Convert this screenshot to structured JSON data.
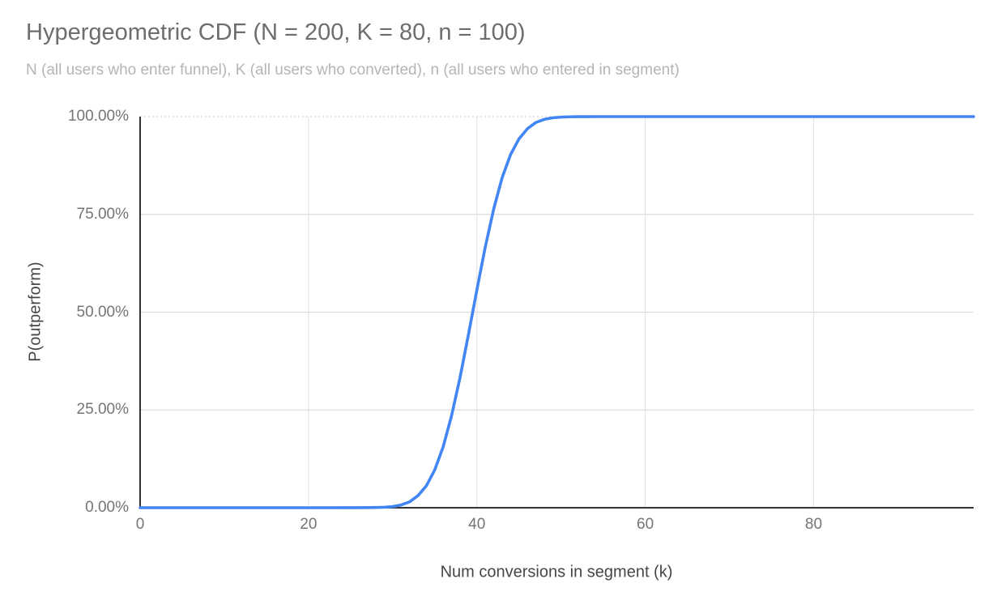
{
  "chart_data": {
    "type": "line",
    "title": "Hypergeometric CDF (N = 200, K = 80, n = 100)",
    "subtitle": "N (all users who enter funnel), K (all users who converted), n (all users who entered in segment)",
    "xlabel": "Num conversions in segment (k)",
    "ylabel": "P(outperform)",
    "params": {
      "N": 200,
      "K": 80,
      "n": 100
    },
    "xlim": [
      0,
      99
    ],
    "ylim": [
      0,
      1
    ],
    "x_ticks": {
      "values": [
        0,
        20,
        40,
        60,
        80
      ],
      "labels": [
        "0",
        "20",
        "40",
        "60",
        "80"
      ]
    },
    "y_ticks": {
      "values": [
        0,
        0.25,
        0.5,
        0.75,
        1
      ],
      "labels": [
        "0.00%",
        "25.00%",
        "50.00%",
        "75.00%",
        "100.00%"
      ]
    },
    "grid": true,
    "legend": "none",
    "series": [
      {
        "name": "P(outperform)",
        "color": "#4285f4",
        "x": [
          0,
          5,
          10,
          15,
          20,
          22,
          24,
          25,
          26,
          27,
          28,
          29,
          30,
          31,
          32,
          33,
          34,
          35,
          36,
          37,
          38,
          39,
          40,
          41,
          42,
          43,
          44,
          45,
          46,
          47,
          48,
          49,
          50,
          51,
          52,
          53,
          54,
          55,
          57,
          60,
          65,
          70,
          75,
          80,
          85,
          90,
          95,
          99
        ],
        "y": [
          0,
          0,
          0,
          0,
          0,
          0,
          0.0001,
          0.0001,
          0.0002,
          0.0003,
          0.0006,
          0.0013,
          0.003,
          0.007,
          0.015,
          0.031,
          0.056,
          0.097,
          0.156,
          0.236,
          0.333,
          0.443,
          0.557,
          0.667,
          0.764,
          0.844,
          0.903,
          0.943,
          0.969,
          0.985,
          0.993,
          0.997,
          0.9987,
          0.9995,
          0.9998,
          0.9999,
          1,
          1,
          1,
          1,
          1,
          1,
          1,
          1,
          1,
          1,
          1,
          1
        ]
      }
    ],
    "axis_colors": {
      "axis_line": "#333333",
      "grid_horizontal": "#dcdcdc",
      "grid_vertical": "#e3e3e3",
      "grid_top_dotted": "#c9c9c9"
    }
  }
}
